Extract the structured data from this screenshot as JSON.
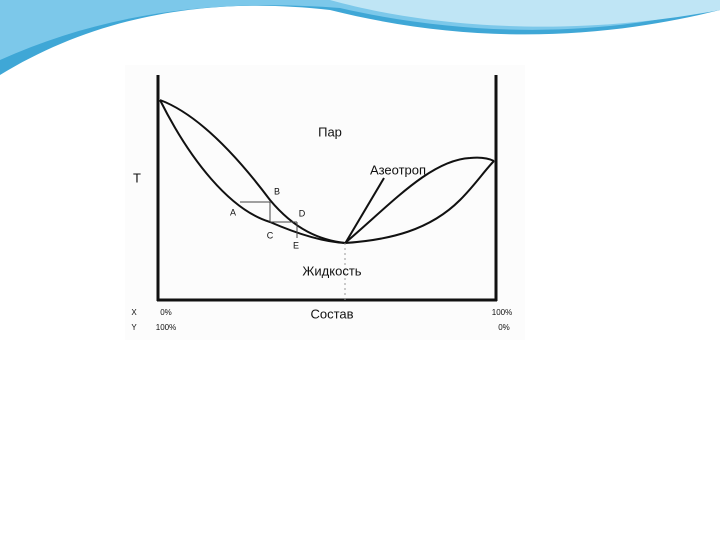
{
  "diagram": {
    "y_axis_label": "T",
    "x_axis_label": "Состав",
    "regions": {
      "vapor": "Пар",
      "liquid": "Жидкость"
    },
    "annotation": "Азеотроп",
    "points": [
      "A",
      "B",
      "C",
      "D",
      "E"
    ],
    "composition_rows": [
      {
        "name": "X",
        "left": "0%",
        "right": "100%"
      },
      {
        "name": "Y",
        "left": "100%",
        "right": "0%"
      }
    ]
  }
}
